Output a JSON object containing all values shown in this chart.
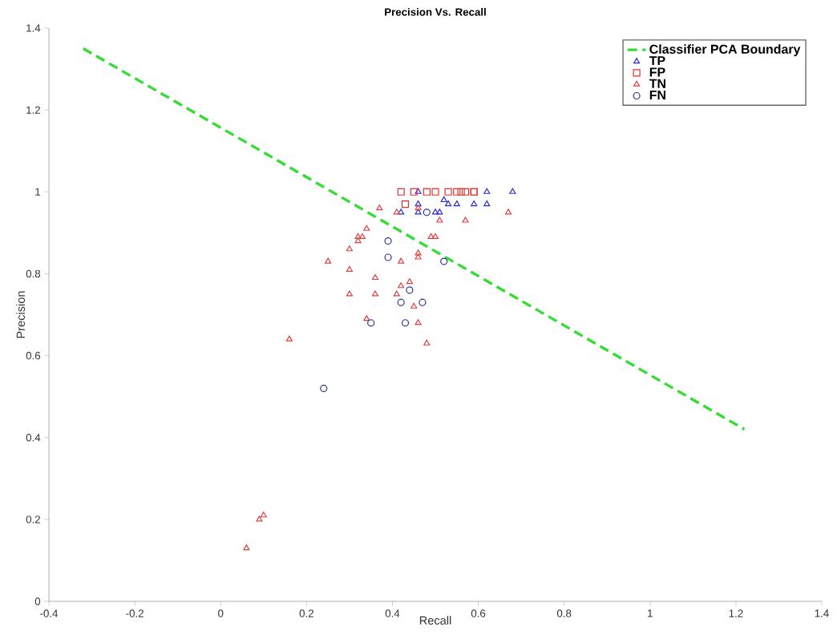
{
  "chart_data": {
    "type": "scatter",
    "title": "Precision Vs. Recall",
    "xlabel": "Recall",
    "ylabel": "Precision",
    "xlim": [
      -0.4,
      1.4
    ],
    "ylim": [
      0,
      1.4
    ],
    "xticks": [
      -0.4,
      -0.2,
      0,
      0.2,
      0.4,
      0.6,
      0.8,
      1,
      1.2,
      1.4
    ],
    "yticks": [
      0,
      0.2,
      0.4,
      0.6,
      0.8,
      1,
      1.2,
      1.4
    ],
    "grid": false,
    "legend": "top right",
    "series": [
      {
        "name": "Classifier PCA Boundary",
        "type": "line",
        "line_style": "dashed",
        "marker": "none",
        "color": "#33dd33",
        "x": [
          -0.32,
          1.22
        ],
        "values": [
          1.35,
          0.42
        ]
      },
      {
        "name": "TP",
        "marker": "triangle",
        "color": "#2a2ad0",
        "x": [
          0.46,
          0.62,
          0.68,
          0.46,
          0.53,
          0.55,
          0.59,
          0.62,
          0.52,
          0.42,
          0.46,
          0.5,
          0.51
        ],
        "values": [
          1.0,
          1.0,
          1.0,
          0.97,
          0.97,
          0.97,
          0.97,
          0.97,
          0.98,
          0.95,
          0.95,
          0.95,
          0.95
        ]
      },
      {
        "name": "FP",
        "marker": "square",
        "color": "#e03030",
        "x": [
          0.42,
          0.45,
          0.48,
          0.5,
          0.53,
          0.55,
          0.56,
          0.57,
          0.59,
          0.59,
          0.43
        ],
        "values": [
          1.0,
          1.0,
          1.0,
          1.0,
          1.0,
          1.0,
          1.0,
          1.0,
          1.0,
          1.0,
          0.97
        ]
      },
      {
        "name": "TN",
        "marker": "triangle",
        "color": "#e04040",
        "x": [
          0.37,
          0.46,
          0.41,
          0.57,
          0.67,
          0.51,
          0.34,
          0.32,
          0.33,
          0.49,
          0.5,
          0.32,
          0.3,
          0.46,
          0.46,
          0.25,
          0.42,
          0.3,
          0.36,
          0.44,
          0.42,
          0.3,
          0.36,
          0.41,
          0.45,
          0.34,
          0.46,
          0.16,
          0.48,
          0.1,
          0.09,
          0.06
        ],
        "values": [
          0.96,
          0.96,
          0.95,
          0.93,
          0.95,
          0.93,
          0.91,
          0.89,
          0.89,
          0.89,
          0.89,
          0.88,
          0.86,
          0.85,
          0.84,
          0.83,
          0.83,
          0.81,
          0.79,
          0.78,
          0.77,
          0.75,
          0.75,
          0.75,
          0.72,
          0.69,
          0.68,
          0.64,
          0.63,
          0.21,
          0.2,
          0.13
        ]
      },
      {
        "name": "FN",
        "marker": "circle",
        "color": "#3030a0",
        "x": [
          0.48,
          0.39,
          0.39,
          0.52,
          0.44,
          0.42,
          0.47,
          0.35,
          0.43,
          0.24
        ],
        "values": [
          0.95,
          0.88,
          0.84,
          0.83,
          0.76,
          0.73,
          0.73,
          0.68,
          0.68,
          0.52
        ]
      }
    ]
  }
}
